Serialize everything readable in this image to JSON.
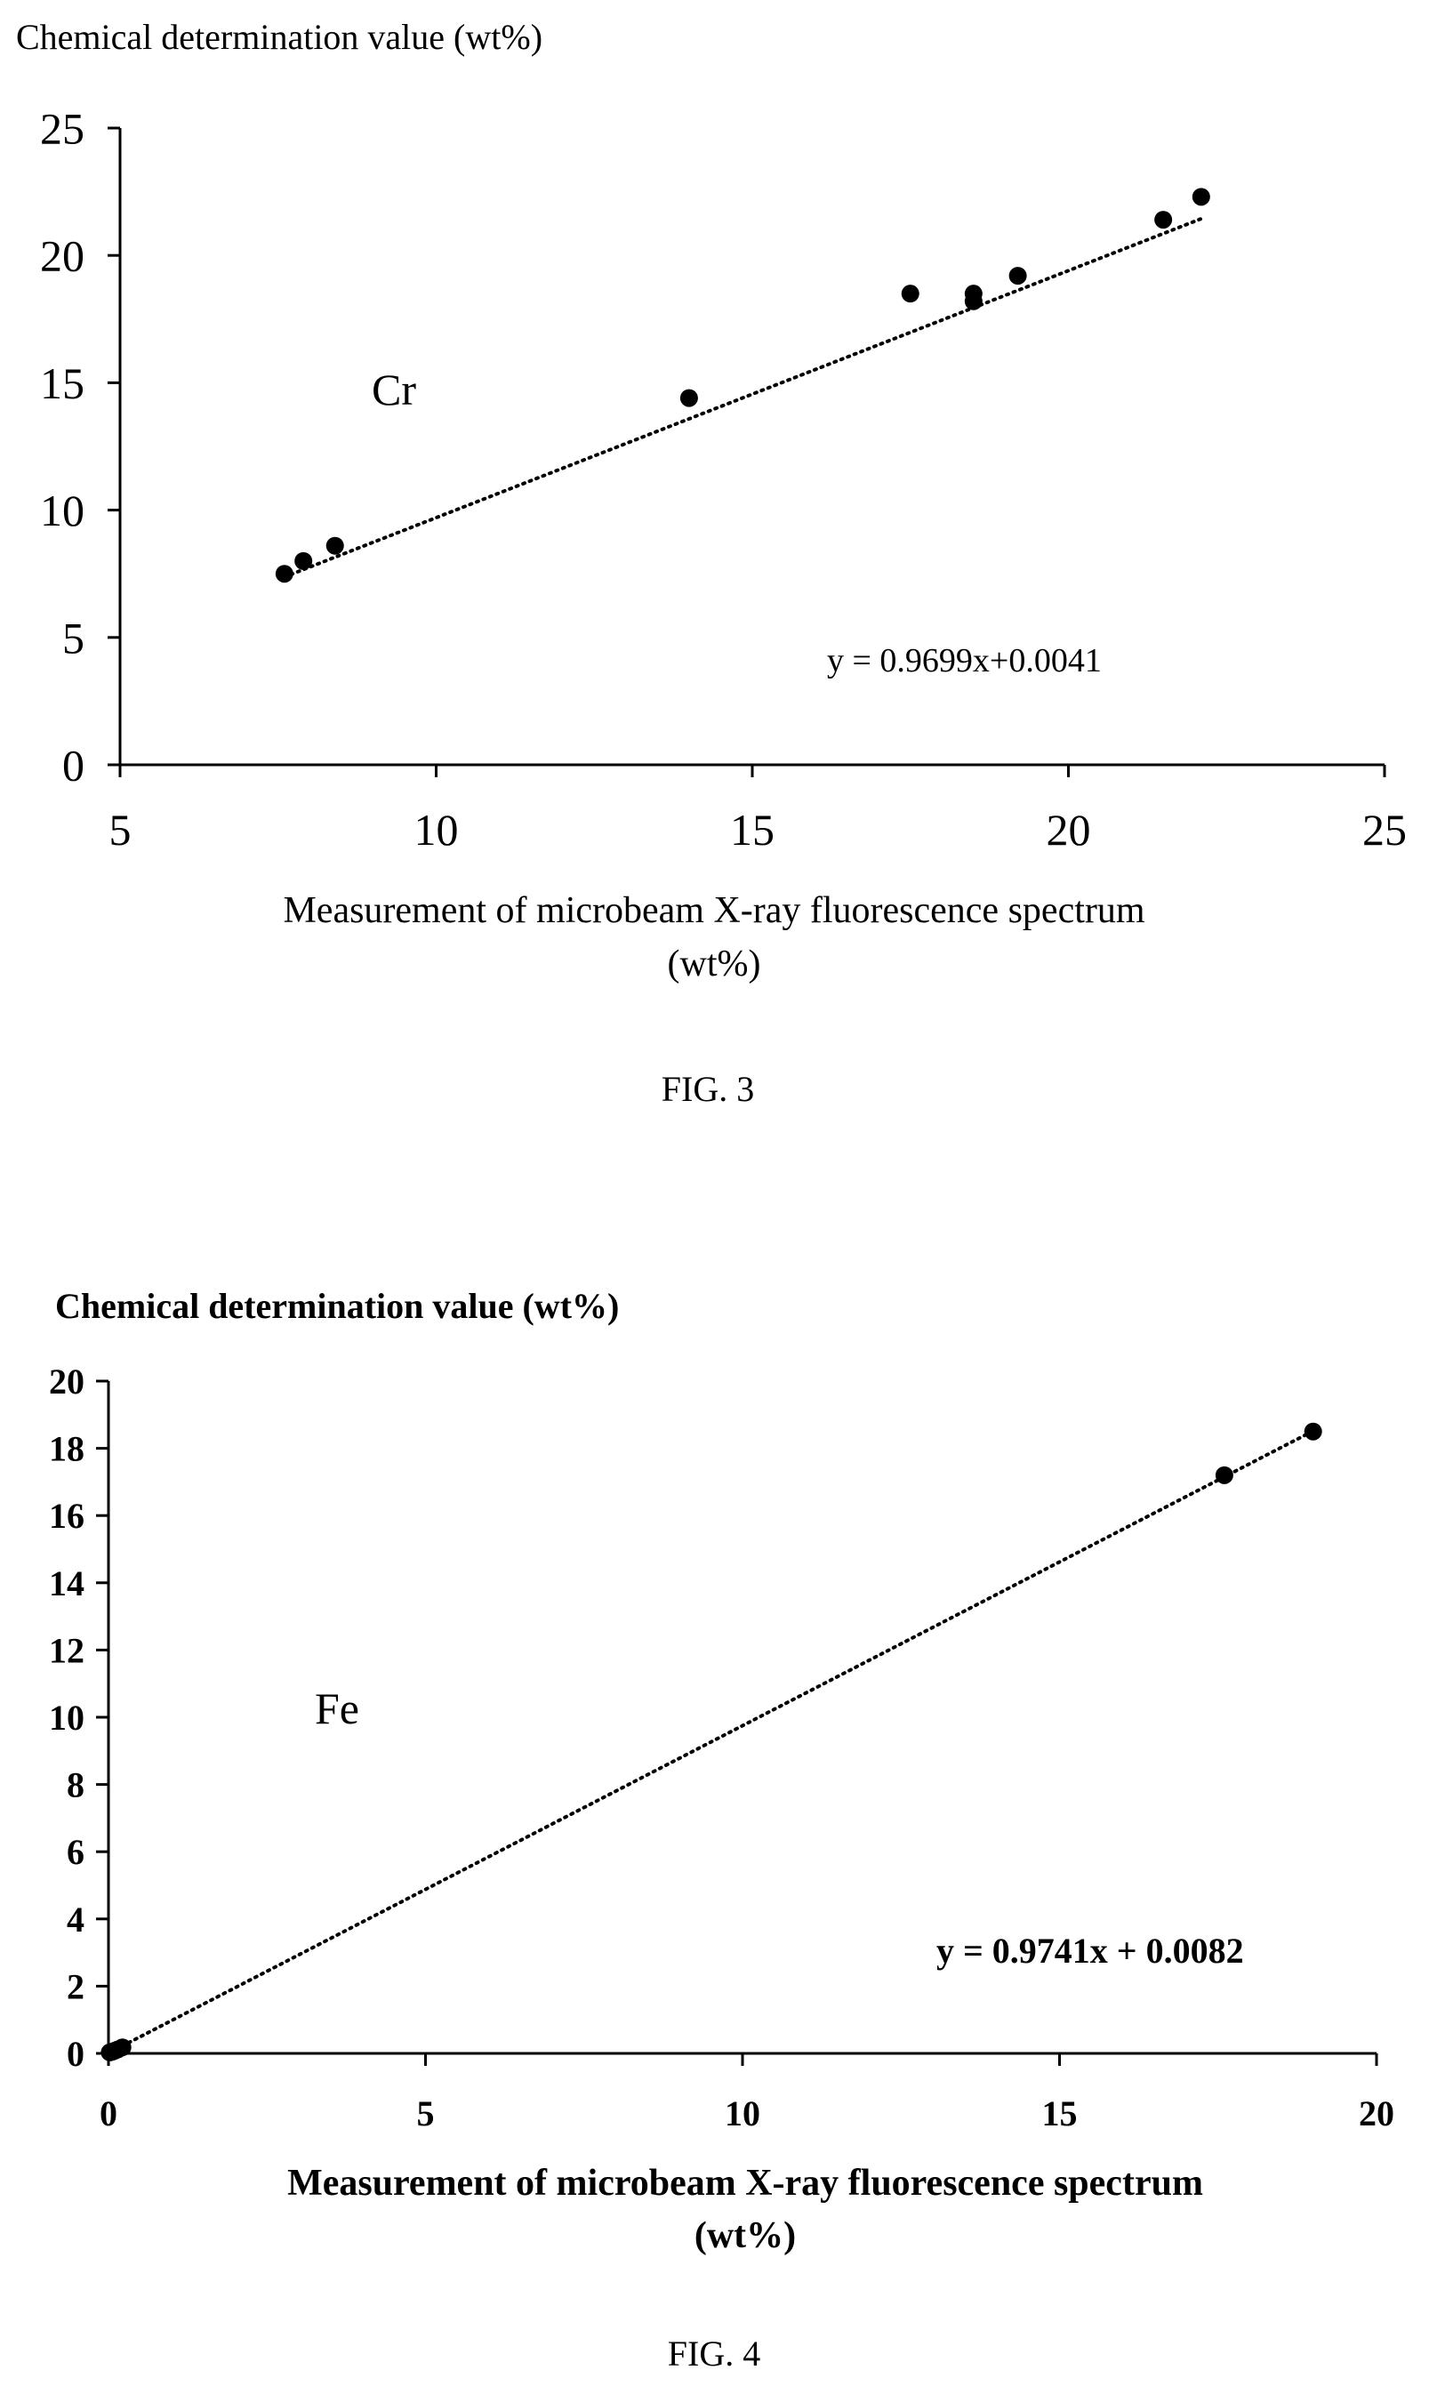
{
  "chart_data": [
    {
      "type": "scatter",
      "ylabel": "Chemical determination value (wt%)",
      "xlabel_line1": "Measurement of microbeam X-ray fluorescence spectrum",
      "xlabel_line2": "(wt%)",
      "element_label": "Cr",
      "equation": "y = 0.9699x+0.0041",
      "trendline": {
        "slope": 0.9699,
        "intercept": 0.0041,
        "style": "dotted"
      },
      "xlim": [
        5,
        25
      ],
      "ylim": [
        0,
        25
      ],
      "xticks": [
        "5",
        "10",
        "15",
        "20",
        "25"
      ],
      "yticks": [
        "0",
        "5",
        "10",
        "15",
        "20",
        "25"
      ],
      "grid": false,
      "figure_caption": "FIG. 3",
      "points": [
        {
          "x": 7.6,
          "y": 7.5
        },
        {
          "x": 7.9,
          "y": 8.0
        },
        {
          "x": 8.4,
          "y": 8.6
        },
        {
          "x": 14.0,
          "y": 14.4
        },
        {
          "x": 17.5,
          "y": 18.5
        },
        {
          "x": 18.5,
          "y": 18.5
        },
        {
          "x": 18.5,
          "y": 18.2
        },
        {
          "x": 19.2,
          "y": 19.2
        },
        {
          "x": 21.5,
          "y": 21.4
        },
        {
          "x": 22.1,
          "y": 22.3
        }
      ]
    },
    {
      "type": "scatter",
      "ylabel": "Chemical determination value (wt%)",
      "xlabel_line1": "Measurement of microbeam X-ray fluorescence spectrum",
      "xlabel_line2": "(wt%)",
      "element_label": "Fe",
      "equation": "y = 0.9741x + 0.0082",
      "trendline": {
        "slope": 0.9741,
        "intercept": 0.0082,
        "style": "dotted"
      },
      "xlim": [
        0,
        20
      ],
      "ylim": [
        0,
        20
      ],
      "xticks": [
        "0",
        "5",
        "10",
        "15",
        "20"
      ],
      "yticks": [
        "0",
        "2",
        "4",
        "6",
        "8",
        "10",
        "12",
        "14",
        "16",
        "18",
        "20"
      ],
      "grid": false,
      "figure_caption": "FIG. 4",
      "points": [
        {
          "x": 0.02,
          "y": 0.03
        },
        {
          "x": 0.06,
          "y": 0.05
        },
        {
          "x": 0.1,
          "y": 0.08
        },
        {
          "x": 0.15,
          "y": 0.12
        },
        {
          "x": 0.22,
          "y": 0.18
        },
        {
          "x": 17.6,
          "y": 17.2
        },
        {
          "x": 19.0,
          "y": 18.5
        }
      ]
    }
  ]
}
